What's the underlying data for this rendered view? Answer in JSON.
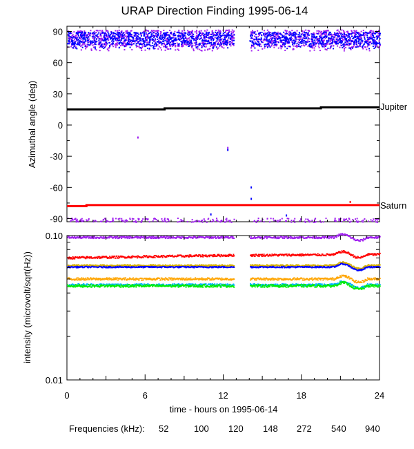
{
  "chart_data": [
    {
      "type": "scatter",
      "title": "URAP Direction Finding  1995-06-14",
      "ylabel": "Azimuthal angle (deg)",
      "xlabel": "",
      "xlim": [
        0,
        24
      ],
      "ylim": [
        -93,
        95
      ],
      "yticks": [
        90,
        60,
        30,
        0,
        -30,
        -60,
        -90
      ],
      "xticks_minor": [
        3,
        9,
        15,
        21
      ],
      "grid": false,
      "data_gap_hours": [
        12.8,
        14.0
      ],
      "reference_lines": [
        {
          "label": "Jupiter",
          "color": "#000000",
          "x": [
            0,
            7.5,
            7.5,
            19.5,
            19.5,
            24
          ],
          "y": [
            15,
            15,
            16,
            16,
            17,
            17
          ]
        },
        {
          "label": "Saturn",
          "color": "#ff0000",
          "x": [
            0,
            1.5,
            1.5,
            24
          ],
          "y": [
            -78,
            -78,
            -77,
            -77
          ]
        }
      ],
      "series": [
        {
          "freq_khz": "940",
          "color": "#a020f0",
          "y_band": [
            76,
            92
          ],
          "scatter": true
        },
        {
          "freq_khz": "540",
          "color": "#0000ff",
          "y_band": [
            78,
            90
          ],
          "scatter": true
        },
        {
          "freq_khz": "940",
          "color": "#a020f0",
          "y_band": [
            -93,
            -89
          ],
          "scatter": true,
          "near_saturn": true
        }
      ],
      "outliers": [
        {
          "x": 5.4,
          "y": -11,
          "color": "#a020f0"
        },
        {
          "x": 12.3,
          "y": -21,
          "color": "#a020f0"
        },
        {
          "x": 12.3,
          "y": -23,
          "color": "#0000ff"
        },
        {
          "x": 14.1,
          "y": -59,
          "color": "#0000ff"
        },
        {
          "x": 14.1,
          "y": -70,
          "color": "#0000ff"
        },
        {
          "x": 11.0,
          "y": -85,
          "color": "#0000ff"
        },
        {
          "x": 21.7,
          "y": -73,
          "color": "#ff0000"
        },
        {
          "x": 16.8,
          "y": -86,
          "color": "#0000ff"
        }
      ]
    },
    {
      "type": "line",
      "ylabel": "intensity (microvolt/sqrt(Hz))",
      "xlabel": "time - hours on 1995-06-14",
      "xlim": [
        0,
        24
      ],
      "ylim": [
        0.01,
        0.1
      ],
      "yscale": "log",
      "ytick_labels": [
        "0.10",
        "0.01"
      ],
      "xticks": [
        0,
        6,
        12,
        18,
        24
      ],
      "xtick_labels": [
        "0",
        "6",
        "12",
        "18",
        "24"
      ],
      "grid": false,
      "data_gap_hours": [
        12.8,
        14.0
      ],
      "series": [
        {
          "freq_khz": "940",
          "color": "#a020f0",
          "level": 0.097,
          "noise": 0.0015
        },
        {
          "freq_khz": "52",
          "color": "#ff0000",
          "level": 0.072,
          "noise": 0.0012,
          "segments": [
            [
              0,
              12.8,
              0.07,
              0.073
            ],
            [
              14.0,
              24,
              0.073,
              0.074
            ]
          ]
        },
        {
          "freq_khz": "120",
          "color": "#d4b000",
          "level": 0.062,
          "noise": 0.0008
        },
        {
          "freq_khz": "540",
          "color": "#0000ff",
          "level": 0.0605,
          "noise": 0.0006
        },
        {
          "freq_khz": "100",
          "color": "#ffa500",
          "level": 0.05,
          "noise": 0.0009
        },
        {
          "freq_khz": "272",
          "color": "#00b4ff",
          "level": 0.0455,
          "noise": 0.0008
        },
        {
          "freq_khz": "148",
          "color": "#00ee00",
          "level": 0.0448,
          "noise": 0.0009
        }
      ]
    }
  ],
  "legend": {
    "label": "Frequencies (kHz):",
    "items": [
      {
        "text": "52",
        "color": "#ff0000"
      },
      {
        "text": "100",
        "color": "#ffa500"
      },
      {
        "text": "120",
        "color": "#d4b000"
      },
      {
        "text": "148",
        "color": "#00ee00"
      },
      {
        "text": "272",
        "color": "#00b4ff"
      },
      {
        "text": "540",
        "color": "#0000ff"
      },
      {
        "text": "940",
        "color": "#a020f0"
      }
    ]
  }
}
